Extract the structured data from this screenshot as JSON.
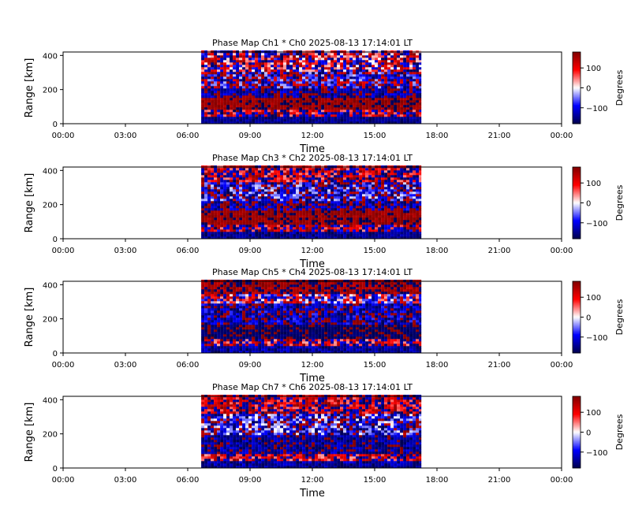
{
  "chart_data": [
    {
      "type": "heatmap",
      "title": "Phase Map Ch1 * Ch0 2025-08-13 17:14:01 LT",
      "xlabel": "Time",
      "ylabel": "Range [km]",
      "xlim": [
        0,
        24
      ],
      "ylim": [
        0,
        420
      ],
      "data_time_range": [
        6.65,
        17.25
      ],
      "x_ticks": [
        "00:00",
        "03:00",
        "06:00",
        "09:00",
        "12:00",
        "15:00",
        "18:00",
        "21:00",
        "00:00"
      ],
      "y_ticks": [
        "0",
        "200",
        "400"
      ],
      "colorbar": {
        "label": "Degrees",
        "ticks": [
          "100",
          "0",
          "−100"
        ],
        "range": [
          -180,
          180
        ],
        "colormap": "seismic"
      },
      "range_profile": [
        {
          "from": 0,
          "to": 30,
          "mean": -150,
          "spread": 30
        },
        {
          "from": 30,
          "to": 70,
          "mean": 160,
          "spread": 120
        },
        {
          "from": 70,
          "to": 140,
          "mean": 165,
          "spread": 25
        },
        {
          "from": 140,
          "to": 200,
          "mean": -150,
          "spread": 60
        },
        {
          "from": 200,
          "to": 300,
          "mean": -140,
          "spread": 120
        },
        {
          "from": 300,
          "to": 420,
          "mean": 140,
          "spread": 150
        }
      ]
    },
    {
      "type": "heatmap",
      "title": "Phase Map Ch3 * Ch2 2025-08-13 17:14:01 LT",
      "xlabel": "Time",
      "ylabel": "Range [km]",
      "xlim": [
        0,
        24
      ],
      "ylim": [
        0,
        420
      ],
      "data_time_range": [
        6.65,
        17.25
      ],
      "x_ticks": [
        "00:00",
        "03:00",
        "06:00",
        "09:00",
        "12:00",
        "15:00",
        "18:00",
        "21:00",
        "00:00"
      ],
      "y_ticks": [
        "0",
        "200",
        "400"
      ],
      "colorbar": {
        "label": "Degrees",
        "ticks": [
          "100",
          "0",
          "−100"
        ],
        "range": [
          -180,
          180
        ],
        "colormap": "seismic"
      },
      "range_profile": [
        {
          "from": 0,
          "to": 30,
          "mean": -150,
          "spread": 30
        },
        {
          "from": 30,
          "to": 70,
          "mean": 160,
          "spread": 120
        },
        {
          "from": 70,
          "to": 160,
          "mean": 165,
          "spread": 25
        },
        {
          "from": 160,
          "to": 220,
          "mean": -150,
          "spread": 70
        },
        {
          "from": 220,
          "to": 320,
          "mean": -120,
          "spread": 110
        },
        {
          "from": 320,
          "to": 420,
          "mean": 150,
          "spread": 110
        }
      ]
    },
    {
      "type": "heatmap",
      "title": "Phase Map Ch5 * Ch4 2025-08-13 17:14:01 LT",
      "xlabel": "Time",
      "ylabel": "Range [km]",
      "xlim": [
        0,
        24
      ],
      "ylim": [
        0,
        420
      ],
      "data_time_range": [
        6.65,
        17.25
      ],
      "x_ticks": [
        "00:00",
        "03:00",
        "06:00",
        "09:00",
        "12:00",
        "15:00",
        "18:00",
        "21:00",
        "00:00"
      ],
      "y_ticks": [
        "0",
        "200",
        "400"
      ],
      "colorbar": {
        "label": "Degrees",
        "ticks": [
          "100",
          "0",
          "−100"
        ],
        "range": [
          -180,
          180
        ],
        "colormap": "seismic"
      },
      "range_profile": [
        {
          "from": 0,
          "to": 30,
          "mean": -140,
          "spread": 40
        },
        {
          "from": 30,
          "to": 70,
          "mean": 150,
          "spread": 120
        },
        {
          "from": 70,
          "to": 160,
          "mean": -170,
          "spread": 20
        },
        {
          "from": 160,
          "to": 280,
          "mean": -140,
          "spread": 70
        },
        {
          "from": 280,
          "to": 340,
          "mean": 0,
          "spread": 160
        },
        {
          "from": 340,
          "to": 420,
          "mean": 165,
          "spread": 40
        }
      ]
    },
    {
      "type": "heatmap",
      "title": "Phase Map Ch7 * Ch6 2025-08-13 17:14:01 LT",
      "xlabel": "Time",
      "ylabel": "Range [km]",
      "xlim": [
        0,
        24
      ],
      "ylim": [
        0,
        420
      ],
      "data_time_range": [
        6.65,
        17.25
      ],
      "x_ticks": [
        "00:00",
        "03:00",
        "06:00",
        "09:00",
        "12:00",
        "15:00",
        "18:00",
        "21:00",
        "00:00"
      ],
      "y_ticks": [
        "0",
        "200",
        "400"
      ],
      "colorbar": {
        "label": "Degrees",
        "ticks": [
          "100",
          "0",
          "−100"
        ],
        "range": [
          -180,
          180
        ],
        "colormap": "seismic"
      },
      "range_profile": [
        {
          "from": 0,
          "to": 30,
          "mean": -140,
          "spread": 40
        },
        {
          "from": 30,
          "to": 70,
          "mean": 150,
          "spread": 120
        },
        {
          "from": 70,
          "to": 180,
          "mean": -150,
          "spread": 50
        },
        {
          "from": 180,
          "to": 310,
          "mean": -110,
          "spread": 120
        },
        {
          "from": 310,
          "to": 420,
          "mean": 150,
          "spread": 100
        }
      ]
    }
  ]
}
